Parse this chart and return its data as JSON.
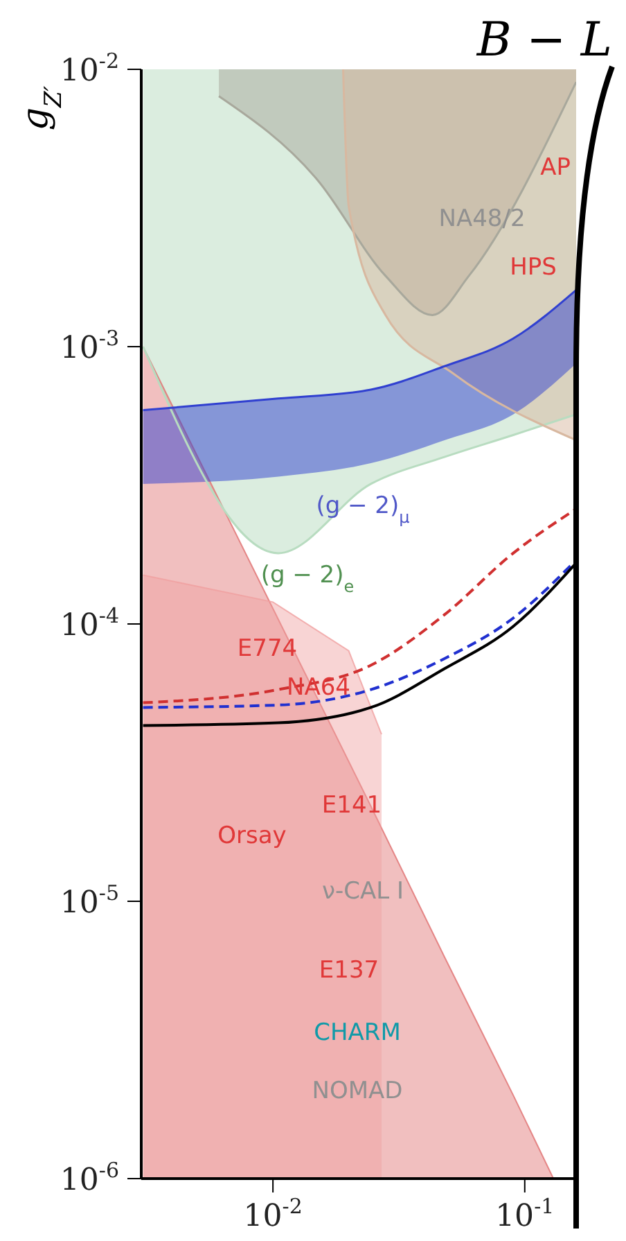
{
  "chart_data": {
    "type": "line",
    "title": "B − L",
    "ylabel": "g$_{Z′}$",
    "log": "xy",
    "grid": false,
    "legend": false,
    "marker": "none",
    "xlim": [
      0.003,
      0.16
    ],
    "ylim": [
      1e-06,
      0.01
    ],
    "xticks": [
      {
        "value": 0.01,
        "label": "10$^{-2}$"
      },
      {
        "value": 0.1,
        "label": "10$^{-1}$"
      }
    ],
    "yticks": [
      {
        "value": 1e-06,
        "label": "10$^{-6}$"
      },
      {
        "value": 1e-05,
        "label": "10$^{-5}$"
      },
      {
        "value": 0.0001,
        "label": "10$^{-4}$"
      },
      {
        "value": 0.001,
        "label": "10$^{-3}$"
      },
      {
        "value": 0.01,
        "label": "10$^{-2}$"
      }
    ],
    "series": [
      {
        "color": "#b8dcc0",
        "line_style": "solid",
        "x": [
          0.00305,
          0.0105,
          0.0245,
          0.048,
          0.09,
          0.16
        ],
        "values": [
          0.001,
          0.00018,
          0.00032,
          0.0004,
          0.00048,
          0.00057
        ],
        "lower": [
          0.001,
          0.00018,
          0.00032,
          0.0004,
          0.00048,
          0.00057
        ],
        "upper": [
          0.01,
          0.01,
          0.01,
          0.01,
          0.01,
          0.01
        ]
      },
      {
        "color": "#a8a89c",
        "line_style": "solid",
        "x": [
          0.0061,
          0.015,
          0.028,
          0.043,
          0.06,
          0.16
        ],
        "values": [
          0.008,
          0.004,
          0.0018,
          0.0013,
          0.0018,
          0.009
        ],
        "lower": [
          0.008,
          0.004,
          0.0018,
          0.0013,
          0.0018,
          0.009
        ],
        "upper": [
          0.01,
          0.01,
          0.01,
          0.01,
          0.01,
          0.01
        ]
      },
      {
        "color": "#d8b8a0",
        "line_style": "solid",
        "x": [
          0.019,
          0.02,
          0.028,
          0.052,
          0.16
        ],
        "values": [
          0.01,
          0.0032,
          0.0013,
          0.0008,
          0.00046
        ],
        "lower": [
          0.01,
          0.0032,
          0.0013,
          0.0008,
          0.00046
        ],
        "upper": [
          0.01,
          0.01,
          0.01,
          0.01,
          0.01
        ]
      },
      {
        "type": "area",
        "color": "#e07070",
        "x": [
          0.00305,
          0.0105,
          0.0245,
          0.048,
          0.09,
          0.13
        ],
        "values": [
          0.001,
          0.000104,
          2.2e-05,
          6.3e-06,
          2e-06,
          1e-06
        ]
      },
      {
        "type": "area",
        "color": "#f0a0a0",
        "x": [
          0.00305,
          0.01,
          0.02,
          0.027
        ],
        "values": [
          0.00015,
          0.00012,
          8e-05,
          4e-05
        ]
      },
      {
        "color": "#3040d0",
        "line_style": "solid",
        "x": [
          0.00305,
          0.0105,
          0.0245,
          0.048,
          0.09,
          0.16
        ],
        "lower": [
          0.00032,
          0.00034,
          0.00038,
          0.00046,
          0.00057,
          0.00087
        ],
        "values": [
          0.00059,
          0.00065,
          0.0007,
          0.00085,
          0.00107,
          0.0016
        ],
        "upper": [
          0.00059,
          0.00065,
          0.0007,
          0.00085,
          0.00107,
          0.0016
        ]
      },
      {
        "color": "#d03030",
        "line_style": "dashed",
        "x": [
          0.00305,
          0.0105,
          0.0245,
          0.048,
          0.09,
          0.16
        ],
        "values": [
          5.2e-05,
          5.8e-05,
          7.1e-05,
          0.000108,
          0.00018,
          0.00026
        ]
      },
      {
        "color": "#2030d0",
        "line_style": "dashed",
        "x": [
          0.00305,
          0.0105,
          0.0245,
          0.048,
          0.09,
          0.16
        ],
        "values": [
          5e-05,
          5.1e-05,
          5.8e-05,
          7.5e-05,
          0.000105,
          0.00017
        ]
      },
      {
        "color": "#000000",
        "line_style": "solid",
        "x": [
          0.00305,
          0.0105,
          0.0245,
          0.048,
          0.09,
          0.16
        ],
        "values": [
          4.3e-05,
          4.4e-05,
          5e-05,
          6.9e-05,
          9.8e-05,
          0.000166
        ]
      }
    ],
    "annotations": [
      "AP",
      "NA48/2",
      "HPS",
      "(g − 2)$_{μ}$",
      "(g − 2)$_{e}$",
      "E774",
      "NA64",
      "E141",
      "Orsay",
      "ν-CAL I",
      "E137",
      "CHARM",
      "NOMAD"
    ]
  }
}
